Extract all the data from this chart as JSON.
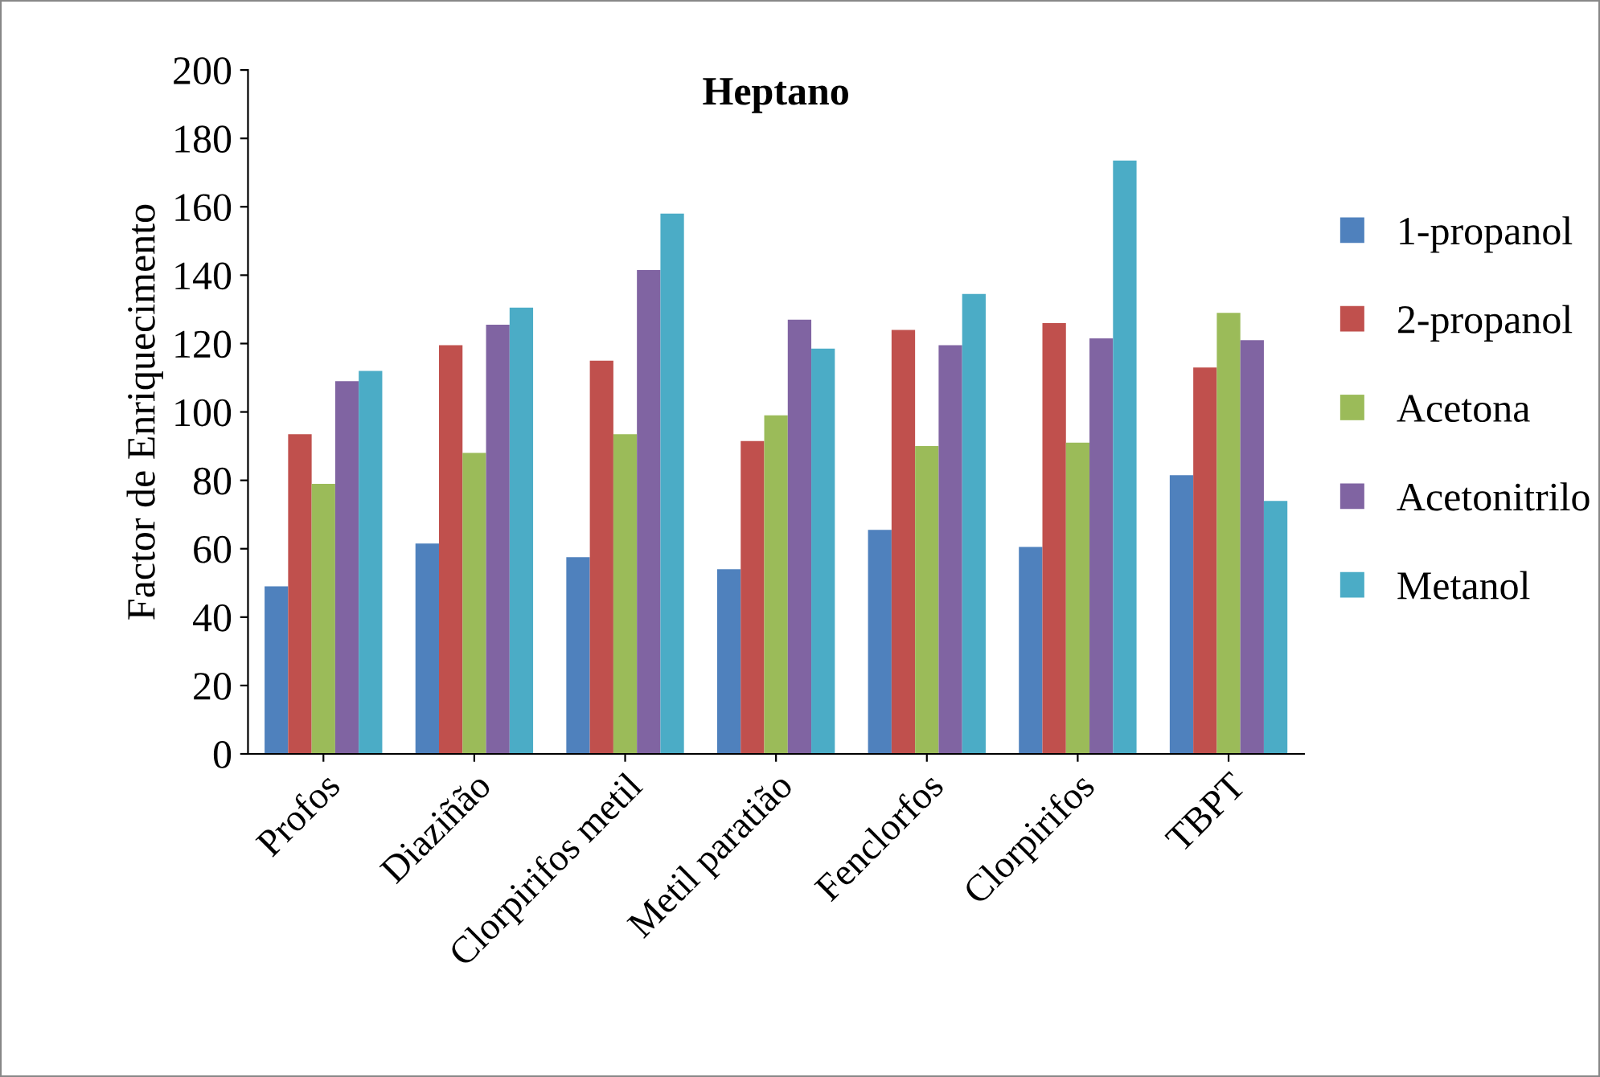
{
  "chart_data": {
    "type": "bar",
    "title": "Heptano",
    "ylabel": "Factor de Enriquecimento",
    "categories": [
      "Profos",
      "Diaziñão",
      "Clorpirifos metil",
      "Metil paratião",
      "Fenclorfos",
      "Clorpirifos",
      "TBPT"
    ],
    "series": [
      {
        "name": "1-propanol",
        "color": "#4f81bd",
        "values": [
          49,
          61.5,
          57.5,
          54,
          65.5,
          60.5,
          81.5
        ]
      },
      {
        "name": "2-propanol",
        "color": "#c0504d",
        "values": [
          93.5,
          119.5,
          115,
          91.5,
          124,
          126,
          113
        ]
      },
      {
        "name": "Acetona",
        "color": "#9bbb59",
        "values": [
          79,
          88,
          93.5,
          99,
          90,
          91,
          129
        ]
      },
      {
        "name": "Acetonitrilo",
        "color": "#8064a2",
        "values": [
          109,
          125.5,
          141.5,
          127,
          119.5,
          121.5,
          121
        ]
      },
      {
        "name": "Metanol",
        "color": "#4bacc6",
        "values": [
          112,
          130.5,
          158,
          118.5,
          134.5,
          173.5,
          74
        ]
      }
    ],
    "ylim": [
      0,
      200
    ],
    "yticks": [
      0,
      20,
      40,
      60,
      80,
      100,
      120,
      140,
      160,
      180,
      200
    ],
    "grid": false,
    "legend": "right"
  }
}
